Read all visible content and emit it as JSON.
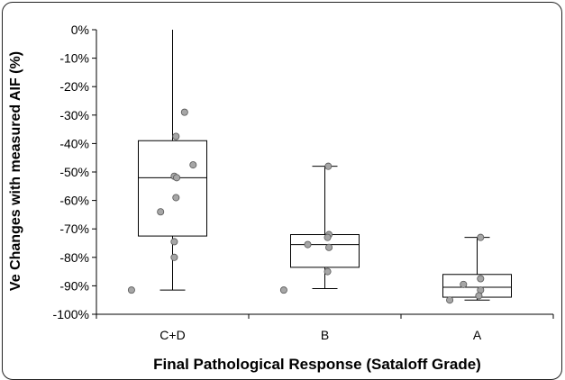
{
  "chart_data": {
    "type": "box",
    "title": "",
    "xlabel": "Final Pathological Response (Sataloff Grade)",
    "ylabel": "Ve Changes with measured AIF (%)",
    "ylim": [
      -100,
      0
    ],
    "yticks": [
      0,
      -10,
      -20,
      -30,
      -40,
      -50,
      -60,
      -70,
      -80,
      -90,
      -100
    ],
    "ytick_labels": [
      "0%",
      "-10%",
      "-20%",
      "-30%",
      "-40%",
      "-50%",
      "-60%",
      "-70%",
      "-80%",
      "-90%",
      "-100%"
    ],
    "categories": [
      "C+D",
      "B",
      "A"
    ],
    "boxes": [
      {
        "category": "C+D",
        "whisker_low": -91.5,
        "q1": -72.5,
        "median": -52,
        "q3": -39,
        "whisker_high": 0
      },
      {
        "category": "B",
        "whisker_low": -91,
        "q1": -83.5,
        "median": -75.5,
        "q3": -72,
        "whisker_high": -48
      },
      {
        "category": "A",
        "whisker_low": -95,
        "q1": -94,
        "median": -90.5,
        "q3": -86,
        "whisker_high": -73
      }
    ],
    "points": [
      {
        "category": "C+D",
        "values": [
          -29,
          -37.5,
          -47.5,
          -51.5,
          -52,
          -59,
          -64,
          -74.5,
          -80,
          -91.5
        ],
        "offsets": [
          0.35,
          0.1,
          0.6,
          0.05,
          0.12,
          0.1,
          -0.35,
          0.05,
          0.05,
          -1.2
        ]
      },
      {
        "category": "B",
        "values": [
          -48,
          -72,
          -73,
          -75.5,
          -76.5,
          -85,
          -91.5
        ],
        "offsets": [
          0.1,
          0.12,
          0.08,
          -0.5,
          0.12,
          0.08,
          -1.2
        ]
      },
      {
        "category": "A",
        "values": [
          -73,
          -87.5,
          -89.5,
          -91.5,
          -93.5,
          -95
        ],
        "offsets": [
          0.1,
          0.1,
          -0.4,
          0.1,
          0.05,
          -0.8
        ]
      }
    ],
    "grid": false,
    "colors": {
      "point_fill": "#a6a6a6",
      "line": "#000000"
    }
  }
}
